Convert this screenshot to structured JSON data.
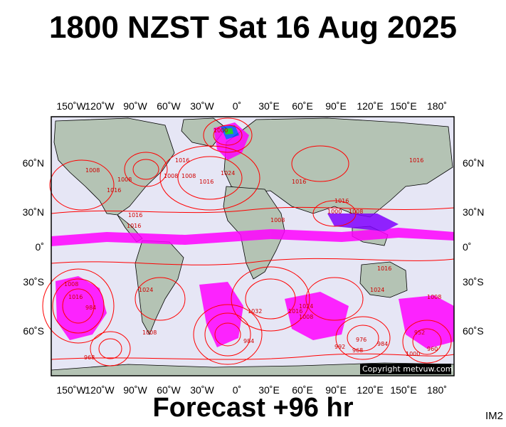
{
  "title": "1800 NZST Sat 16 Aug 2025",
  "footer": "Forecast +96 hr",
  "image_id": "IM2",
  "copyright": "Copyright metvuw.com",
  "lon_ticks": [
    "150˚W",
    "120˚W",
    "90˚W",
    "60˚W",
    "30˚W",
    "0˚",
    "30˚E",
    "60˚E",
    "90˚E",
    "120˚E",
    "150˚E",
    "180˚"
  ],
  "lat_ticks": [
    "60˚N",
    "30˚N",
    "0˚",
    "30˚S",
    "60˚S"
  ],
  "isobar_labels": [
    "1000",
    "1008",
    "1016",
    "1024",
    "1016",
    "1008",
    "1016",
    "1008",
    "1016",
    "1000",
    "1008",
    "1016",
    "1008",
    "1024",
    "1024",
    "1032",
    "1016",
    "1008",
    "1016",
    "1008",
    "984",
    "968",
    "1008",
    "992",
    "976",
    "984",
    "1024",
    "1016",
    "1008",
    "1016",
    "1008",
    "968",
    "984",
    "1000",
    "952",
    "960",
    "1016",
    "1016"
  ],
  "colors": {
    "ocean": "#e6e6f5",
    "land": "#b4c3b4",
    "isobar": "#ff0000",
    "rain_light": "#ff00ff",
    "rain_medium": "#8000ff",
    "rain_heavy": "#0050ff",
    "rain_extreme": "#00d000",
    "frame": "#000000"
  }
}
